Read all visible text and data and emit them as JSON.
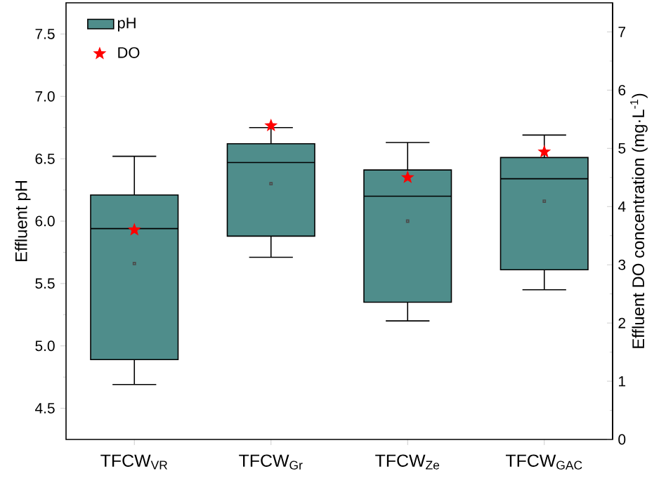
{
  "chart_data": {
    "type": "box",
    "ylabel": "Effluent pH",
    "y2label": "Effluent DO concentration (mg·L$^{-1}$)",
    "categories": [
      "TFCW$_{VR}$",
      "TFCW$_{Gr}$",
      "TFCW$_{Ze}$",
      "TFCW$_{GAC}$"
    ],
    "ylim": [
      4.25,
      7.75
    ],
    "yticks": [
      4.5,
      {
        "value": 5,
        "label": "5.0"
      },
      5.5,
      {
        "value": 6,
        "label": "6.0"
      },
      6.5,
      {
        "value": 7,
        "label": "7.0"
      },
      7.5
    ],
    "y2lim": [
      0,
      7.5
    ],
    "y2ticks": [
      0,
      1,
      2,
      3,
      4,
      5,
      6,
      7
    ],
    "legend": "top left",
    "series": [
      {
        "name": "pH",
        "type": "box",
        "color": "#4f8d8b",
        "boxes": [
          {
            "low": 4.69,
            "q1": 4.89,
            "median": 5.94,
            "q3": 6.21,
            "high": 6.52,
            "mean": 5.66
          },
          {
            "low": 5.71,
            "q1": 5.88,
            "median": 6.47,
            "q3": 6.62,
            "high": 6.75,
            "mean": 6.3
          },
          {
            "low": 5.2,
            "q1": 5.35,
            "median": 6.2,
            "q3": 6.41,
            "high": 6.63,
            "mean": 6.0
          },
          {
            "low": 5.45,
            "q1": 5.61,
            "median": 6.34,
            "q3": 6.51,
            "high": 6.69,
            "mean": 6.16
          }
        ]
      },
      {
        "name": "DO",
        "type": "scatter",
        "axis": "y2",
        "marker": "star",
        "color": "#ff0000",
        "x": [
          "TFCW$_{VR}$",
          "TFCW$_{Gr}$",
          "TFCW$_{Ze}$",
          "TFCW$_{GAC}$"
        ],
        "values": [
          3.6,
          5.39,
          4.5,
          4.94
        ]
      }
    ]
  }
}
